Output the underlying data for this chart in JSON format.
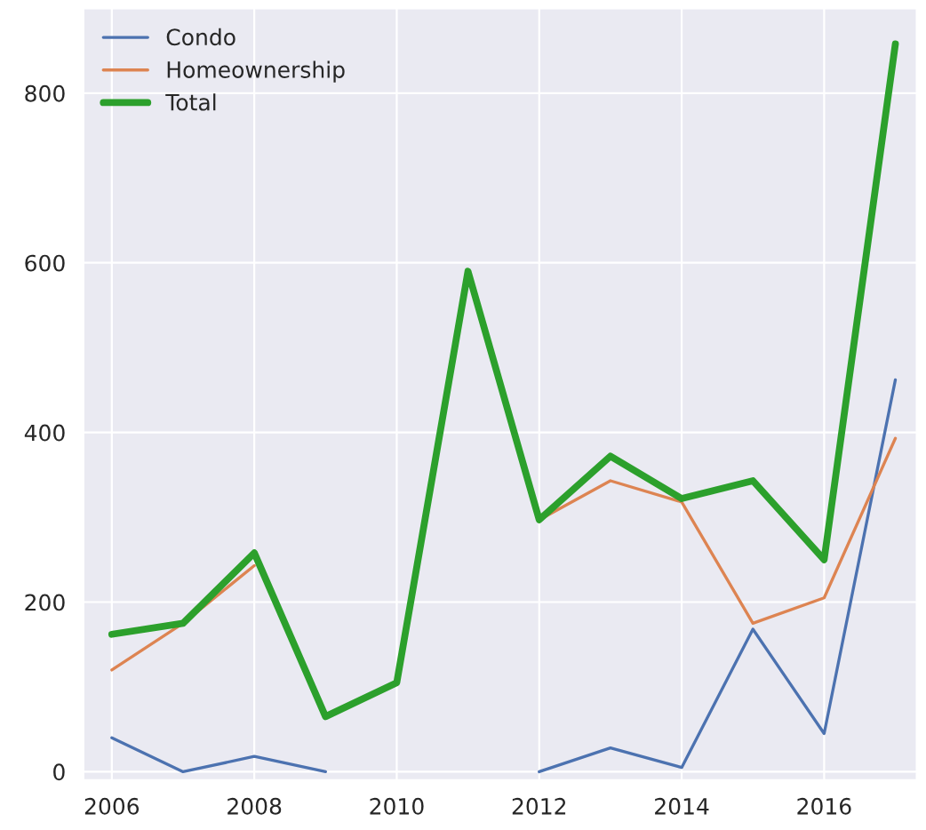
{
  "chart_data": {
    "type": "line",
    "x": [
      2006,
      2007,
      2008,
      2009,
      2010,
      2011,
      2012,
      2013,
      2014,
      2015,
      2016,
      2017
    ],
    "series": [
      {
        "name": "Condo",
        "color": "#4c72b0",
        "values": [
          40,
          0,
          18,
          0,
          null,
          null,
          0,
          28,
          5,
          168,
          45,
          462
        ]
      },
      {
        "name": "Homeownership",
        "color": "#dd8452",
        "values": [
          120,
          175,
          243,
          null,
          null,
          null,
          297,
          343,
          318,
          175,
          205,
          393
        ]
      },
      {
        "name": "Total",
        "color": "#2ca02c",
        "values": [
          162,
          175,
          258,
          65,
          105,
          590,
          297,
          372,
          322,
          343,
          250,
          858
        ]
      }
    ],
    "xlim": [
      2005.6,
      2017.3
    ],
    "xticks": [
      2006,
      2008,
      2010,
      2012,
      2014,
      2016
    ],
    "ylim": [
      -10,
      900
    ],
    "yticks": [
      0,
      200,
      400,
      600,
      800
    ],
    "grid": true,
    "legend": "top left"
  }
}
